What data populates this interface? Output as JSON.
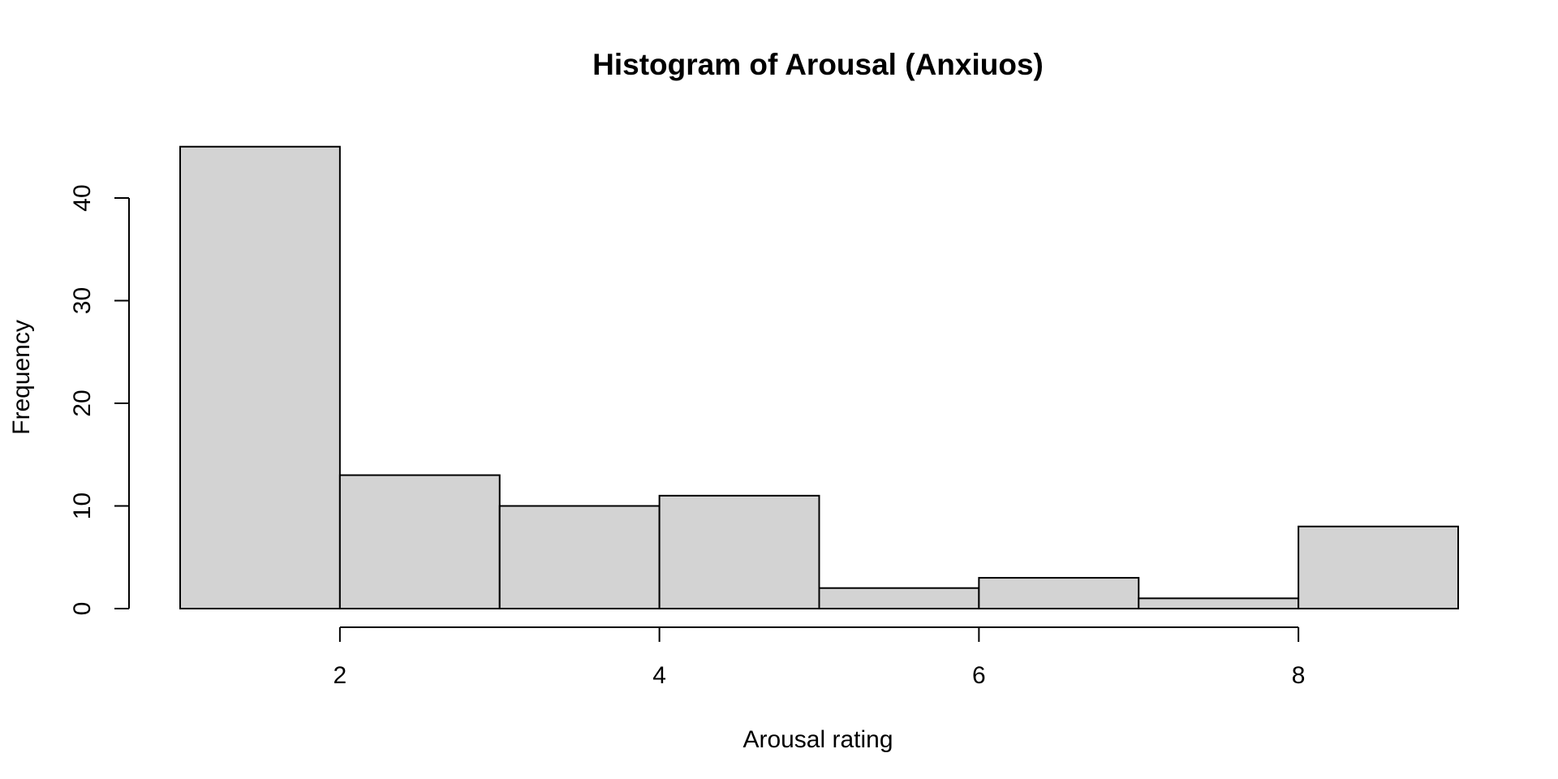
{
  "chart_data": {
    "type": "bar",
    "title": "Histogram of Arousal (Anxiuos)",
    "xlabel": "Arousal rating",
    "ylabel": "Frequency",
    "bins": [
      {
        "from": 1,
        "to": 2,
        "count": 45
      },
      {
        "from": 2,
        "to": 3,
        "count": 13
      },
      {
        "from": 3,
        "to": 4,
        "count": 10
      },
      {
        "from": 4,
        "to": 5,
        "count": 11
      },
      {
        "from": 5,
        "to": 6,
        "count": 2
      },
      {
        "from": 6,
        "to": 7,
        "count": 3
      },
      {
        "from": 7,
        "to": 8,
        "count": 1
      },
      {
        "from": 8,
        "to": 9,
        "count": 8
      }
    ],
    "xticks": [
      "2",
      "4",
      "6",
      "8"
    ],
    "yticks": [
      "0",
      "10",
      "20",
      "30",
      "40"
    ],
    "xlim": [
      1,
      9
    ],
    "ylim": [
      0,
      45
    ],
    "grid": false,
    "colors": {
      "bar_fill": "#d3d3d3",
      "bar_stroke": "#000000"
    }
  }
}
